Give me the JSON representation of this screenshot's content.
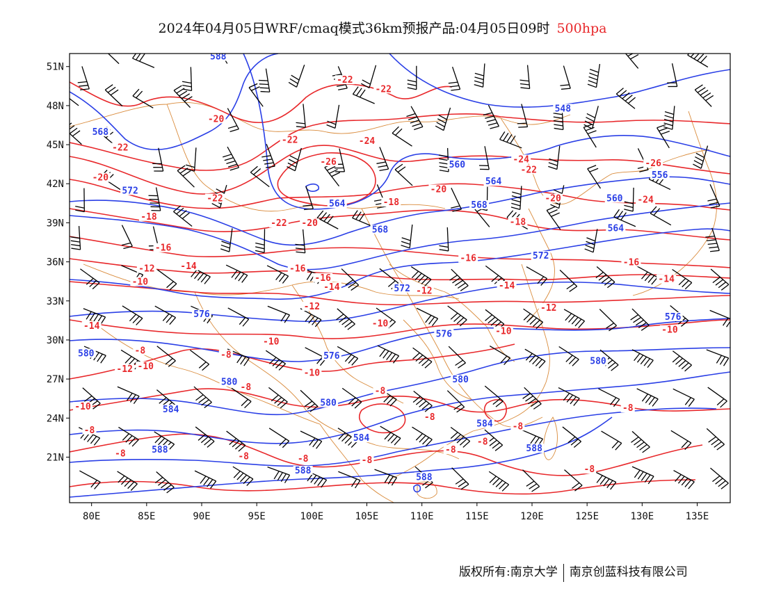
{
  "title": {
    "text": "2024年04月05日WRF/cmaq模式36km预报产品:04月05日09时",
    "level": "500hpa"
  },
  "copyright": {
    "left": "版权所有:南京大学",
    "right": "南京创蓝科技有限公司"
  },
  "colors": {
    "height_contour": "#2a3fe6",
    "temperature_contour": "#e8282b",
    "border": "#d98a3a",
    "wind_barb": "#000000"
  },
  "axes": {
    "lon_ticks": [
      "80E",
      "85E",
      "90E",
      "95E",
      "100E",
      "105E",
      "110E",
      "115E",
      "120E",
      "125E",
      "130E",
      "135E"
    ],
    "lat_ticks": [
      "51N",
      "48N",
      "45N",
      "42N",
      "39N",
      "36N",
      "33N",
      "30N",
      "27N",
      "24N",
      "21N"
    ],
    "lon_range": [
      78,
      138
    ],
    "lat_range": [
      17.5,
      52
    ]
  },
  "height_labels": [
    {
      "text": "588",
      "lon": 91.5,
      "lat": 51.6
    },
    {
      "text": "568",
      "lon": 80.8,
      "lat": 45.8
    },
    {
      "text": "572",
      "lon": 83.5,
      "lat": 41.3
    },
    {
      "text": "548",
      "lon": 122.8,
      "lat": 47.6
    },
    {
      "text": "560",
      "lon": 113.2,
      "lat": 43.3
    },
    {
      "text": "556",
      "lon": 131.6,
      "lat": 42.5
    },
    {
      "text": "564",
      "lon": 116.5,
      "lat": 42.0
    },
    {
      "text": "560",
      "lon": 127.5,
      "lat": 40.7
    },
    {
      "text": "564",
      "lon": 102.3,
      "lat": 40.3
    },
    {
      "text": "568",
      "lon": 115.2,
      "lat": 40.2
    },
    {
      "text": "568",
      "lon": 106.2,
      "lat": 38.3
    },
    {
      "text": "564",
      "lon": 127.6,
      "lat": 38.4
    },
    {
      "text": "572",
      "lon": 120.8,
      "lat": 36.3
    },
    {
      "text": "572",
      "lon": 108.2,
      "lat": 33.8
    },
    {
      "text": "576",
      "lon": 90.0,
      "lat": 31.8
    },
    {
      "text": "576",
      "lon": 132.8,
      "lat": 31.6
    },
    {
      "text": "576",
      "lon": 112.0,
      "lat": 30.3
    },
    {
      "text": "576",
      "lon": 101.8,
      "lat": 28.6
    },
    {
      "text": "580",
      "lon": 79.5,
      "lat": 28.8
    },
    {
      "text": "580",
      "lon": 126.0,
      "lat": 28.2
    },
    {
      "text": "580",
      "lon": 113.5,
      "lat": 26.8
    },
    {
      "text": "580",
      "lon": 92.5,
      "lat": 26.6
    },
    {
      "text": "580",
      "lon": 101.5,
      "lat": 25.0
    },
    {
      "text": "584",
      "lon": 87.2,
      "lat": 24.5
    },
    {
      "text": "584",
      "lon": 115.7,
      "lat": 23.4
    },
    {
      "text": "584",
      "lon": 104.5,
      "lat": 22.3
    },
    {
      "text": "588",
      "lon": 86.2,
      "lat": 21.4
    },
    {
      "text": "588",
      "lon": 120.2,
      "lat": 21.5
    },
    {
      "text": "588",
      "lon": 99.2,
      "lat": 19.8
    },
    {
      "text": "588",
      "lon": 110.2,
      "lat": 19.3
    }
  ],
  "temperature_labels": [
    {
      "text": "-22",
      "lon": 103.0,
      "lat": 49.8
    },
    {
      "text": "-22",
      "lon": 106.5,
      "lat": 49.1
    },
    {
      "text": "-20",
      "lon": 91.3,
      "lat": 46.8
    },
    {
      "text": "-22",
      "lon": 82.6,
      "lat": 44.6
    },
    {
      "text": "-22",
      "lon": 98.0,
      "lat": 45.2
    },
    {
      "text": "-24",
      "lon": 105.0,
      "lat": 45.1
    },
    {
      "text": "-26",
      "lon": 101.5,
      "lat": 43.5
    },
    {
      "text": "-24",
      "lon": 119.0,
      "lat": 43.7
    },
    {
      "text": "-26",
      "lon": 131.0,
      "lat": 43.4
    },
    {
      "text": "-22",
      "lon": 119.7,
      "lat": 42.9
    },
    {
      "text": "-20",
      "lon": 80.8,
      "lat": 42.3
    },
    {
      "text": "-20",
      "lon": 111.5,
      "lat": 41.4
    },
    {
      "text": "-22",
      "lon": 91.2,
      "lat": 40.7
    },
    {
      "text": "-20",
      "lon": 121.9,
      "lat": 40.7
    },
    {
      "text": "-24",
      "lon": 130.3,
      "lat": 40.6
    },
    {
      "text": "-18",
      "lon": 107.2,
      "lat": 40.4
    },
    {
      "text": "-18",
      "lon": 85.2,
      "lat": 39.3
    },
    {
      "text": "-22",
      "lon": 97.0,
      "lat": 38.8
    },
    {
      "text": "-20",
      "lon": 99.8,
      "lat": 38.8
    },
    {
      "text": "-18",
      "lon": 118.7,
      "lat": 38.9
    },
    {
      "text": "-16",
      "lon": 86.5,
      "lat": 36.9
    },
    {
      "text": "-16",
      "lon": 114.2,
      "lat": 36.1
    },
    {
      "text": "-16",
      "lon": 129.0,
      "lat": 35.8
    },
    {
      "text": "-12",
      "lon": 85.0,
      "lat": 35.3
    },
    {
      "text": "-14",
      "lon": 88.8,
      "lat": 35.5
    },
    {
      "text": "-16",
      "lon": 98.7,
      "lat": 35.3
    },
    {
      "text": "-16",
      "lon": 101.0,
      "lat": 34.6
    },
    {
      "text": "-14",
      "lon": 132.2,
      "lat": 34.5
    },
    {
      "text": "-10",
      "lon": 84.4,
      "lat": 34.3
    },
    {
      "text": "-14",
      "lon": 101.8,
      "lat": 33.9
    },
    {
      "text": "-14",
      "lon": 117.7,
      "lat": 34.0
    },
    {
      "text": "-12",
      "lon": 110.2,
      "lat": 33.6
    },
    {
      "text": "-12",
      "lon": 100.0,
      "lat": 32.4
    },
    {
      "text": "-12",
      "lon": 121.5,
      "lat": 32.3
    },
    {
      "text": "-14",
      "lon": 80.0,
      "lat": 30.9
    },
    {
      "text": "-10",
      "lon": 106.2,
      "lat": 31.1
    },
    {
      "text": "-10",
      "lon": 117.4,
      "lat": 30.5
    },
    {
      "text": "-10",
      "lon": 132.5,
      "lat": 30.6
    },
    {
      "text": "-10",
      "lon": 96.3,
      "lat": 29.7
    },
    {
      "text": "-8",
      "lon": 84.4,
      "lat": 29.0
    },
    {
      "text": "-8",
      "lon": 92.2,
      "lat": 28.7
    },
    {
      "text": "-12",
      "lon": 83.0,
      "lat": 27.6
    },
    {
      "text": "-10",
      "lon": 84.9,
      "lat": 27.8
    },
    {
      "text": "-10",
      "lon": 100.0,
      "lat": 27.3
    },
    {
      "text": "-8",
      "lon": 94.0,
      "lat": 26.2
    },
    {
      "text": "-8",
      "lon": 106.2,
      "lat": 25.9
    },
    {
      "text": "-10",
      "lon": 79.2,
      "lat": 24.7
    },
    {
      "text": "-8",
      "lon": 128.7,
      "lat": 24.6
    },
    {
      "text": "-8",
      "lon": 110.7,
      "lat": 23.9
    },
    {
      "text": "-8",
      "lon": 118.7,
      "lat": 23.2
    },
    {
      "text": "-8",
      "lon": 79.8,
      "lat": 22.9
    },
    {
      "text": "-8",
      "lon": 115.5,
      "lat": 22.0
    },
    {
      "text": "-8",
      "lon": 82.6,
      "lat": 21.1
    },
    {
      "text": "-8",
      "lon": 93.8,
      "lat": 20.9
    },
    {
      "text": "-8",
      "lon": 99.2,
      "lat": 20.7
    },
    {
      "text": "-8",
      "lon": 105.0,
      "lat": 20.6
    },
    {
      "text": "-8",
      "lon": 112.6,
      "lat": 21.4
    },
    {
      "text": "-8",
      "lon": 125.2,
      "lat": 19.9
    }
  ]
}
